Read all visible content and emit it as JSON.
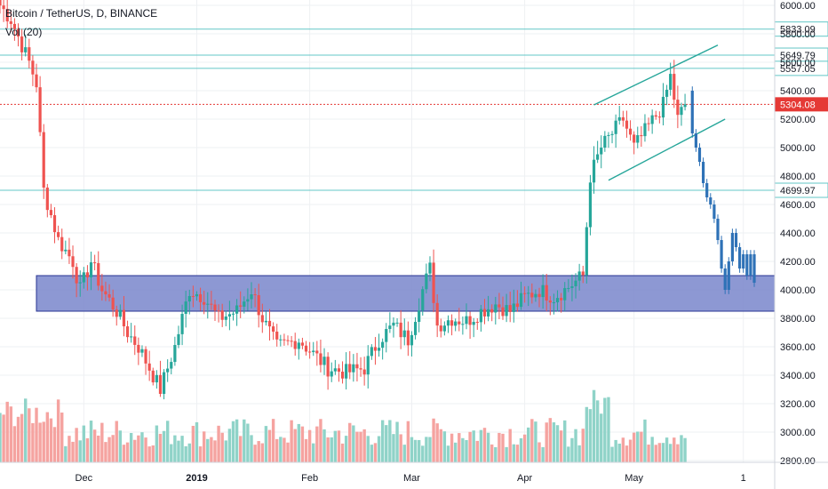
{
  "header": {
    "symbol_line": "Bitcoin / TetherUS, D, BINANCE",
    "indicator_line": "Vol (20)"
  },
  "colors": {
    "up": "#26a69a",
    "down": "#ef5350",
    "level_line": "#63c7c7",
    "current_price": "#e53935",
    "support_zone_fill": "#7986cb",
    "support_zone_stroke": "#283593",
    "wedge_line": "#26a69a",
    "projection": "#2f72b7",
    "volume_up": "#8fd3c8",
    "volume_down": "#f5a3a0"
  },
  "chart_data": {
    "type": "candlestick",
    "title": "Bitcoin / TetherUS, D, BINANCE",
    "indicator": "Vol (20)",
    "y_axis": {
      "side": "right",
      "range": [
        2800,
        6100
      ],
      "ticks": [
        "6000.00",
        "5800.00",
        "5600.00",
        "5400.00",
        "5200.00",
        "5000.00",
        "4800.00",
        "4600.00",
        "4400.00",
        "4200.00",
        "4000.00",
        "3800.00",
        "3600.00",
        "3400.00",
        "3200.00",
        "3000.00",
        "2800.00"
      ]
    },
    "x_axis": {
      "ticks": [
        {
          "label": "Dec",
          "bold": false
        },
        {
          "label": "2019",
          "bold": true
        },
        {
          "label": "Feb",
          "bold": false
        },
        {
          "label": "Mar",
          "bold": false
        },
        {
          "label": "Apr",
          "bold": false
        },
        {
          "label": "May",
          "bold": false
        },
        {
          "label": "1",
          "bold": false
        }
      ]
    },
    "horizontal_levels": [
      {
        "value": 5833.09,
        "label": "5833.09"
      },
      {
        "value": 5649.79,
        "label": "5649.79"
      },
      {
        "value": 5557.05,
        "label": "5557.05"
      },
      {
        "value": 4699.97,
        "label": "4699.97"
      }
    ],
    "current_price": {
      "value": 5304.08,
      "label": "5304.08"
    },
    "support_zone": {
      "from": 3850,
      "to": 4100
    },
    "rising_wedge": {
      "upper": [
        {
          "day": 163,
          "price": 5300
        },
        {
          "day": 197,
          "price": 5720
        }
      ],
      "lower": [
        {
          "day": 167,
          "price": 4770
        },
        {
          "day": 199,
          "price": 5200
        }
      ]
    },
    "projection_path": [
      {
        "day": 189,
        "price": 5400
      },
      {
        "day": 190,
        "price": 5100
      },
      {
        "day": 191,
        "price": 5000
      },
      {
        "day": 192,
        "price": 4900
      },
      {
        "day": 193,
        "price": 4750
      },
      {
        "day": 194,
        "price": 4650
      },
      {
        "day": 195,
        "price": 4600
      },
      {
        "day": 196,
        "price": 4500
      },
      {
        "day": 197,
        "price": 4350
      },
      {
        "day": 198,
        "price": 4150
      },
      {
        "day": 199,
        "price": 4000
      },
      {
        "day": 200,
        "price": 4200
      },
      {
        "day": 201,
        "price": 4400
      },
      {
        "day": 202,
        "price": 4300
      },
      {
        "day": 203,
        "price": 4150
      },
      {
        "day": 204,
        "price": 4250
      },
      {
        "day": 205,
        "price": 4100
      },
      {
        "day": 206,
        "price": 4250
      },
      {
        "day": 207,
        "price": 4050
      }
    ],
    "anchors": [
      {
        "day": 0,
        "price": 6000
      },
      {
        "day": 3,
        "price": 5900
      },
      {
        "day": 8,
        "price": 5600
      },
      {
        "day": 10,
        "price": 5450
      },
      {
        "day": 12,
        "price": 4700
      },
      {
        "day": 16,
        "price": 4350
      },
      {
        "day": 20,
        "price": 4200
      },
      {
        "day": 22,
        "price": 4000
      },
      {
        "day": 25,
        "price": 4200
      },
      {
        "day": 28,
        "price": 4000
      },
      {
        "day": 32,
        "price": 3850
      },
      {
        "day": 35,
        "price": 3700
      },
      {
        "day": 38,
        "price": 3600
      },
      {
        "day": 42,
        "price": 3400
      },
      {
        "day": 44,
        "price": 3300
      },
      {
        "day": 48,
        "price": 3600
      },
      {
        "day": 52,
        "price": 4000
      },
      {
        "day": 56,
        "price": 3950
      },
      {
        "day": 60,
        "price": 3800
      },
      {
        "day": 65,
        "price": 3850
      },
      {
        "day": 69,
        "price": 4000
      },
      {
        "day": 72,
        "price": 3800
      },
      {
        "day": 76,
        "price": 3600
      },
      {
        "day": 82,
        "price": 3650
      },
      {
        "day": 86,
        "price": 3550
      },
      {
        "day": 90,
        "price": 3450
      },
      {
        "day": 95,
        "price": 3420
      },
      {
        "day": 100,
        "price": 3450
      },
      {
        "day": 104,
        "price": 3650
      },
      {
        "day": 108,
        "price": 3750
      },
      {
        "day": 112,
        "price": 3650
      },
      {
        "day": 116,
        "price": 4000
      },
      {
        "day": 118,
        "price": 4150
      },
      {
        "day": 120,
        "price": 3750
      },
      {
        "day": 124,
        "price": 3800
      },
      {
        "day": 128,
        "price": 3780
      },
      {
        "day": 132,
        "price": 3850
      },
      {
        "day": 136,
        "price": 3900
      },
      {
        "day": 140,
        "price": 3850
      },
      {
        "day": 144,
        "price": 3950
      },
      {
        "day": 148,
        "price": 4000
      },
      {
        "day": 152,
        "price": 3950
      },
      {
        "day": 155,
        "price": 4000
      },
      {
        "day": 160,
        "price": 4100
      },
      {
        "day": 162,
        "price": 4800
      },
      {
        "day": 165,
        "price": 5000
      },
      {
        "day": 168,
        "price": 5100
      },
      {
        "day": 171,
        "price": 5200
      },
      {
        "day": 174,
        "price": 5000
      },
      {
        "day": 178,
        "price": 5150
      },
      {
        "day": 182,
        "price": 5300
      },
      {
        "day": 184,
        "price": 5500
      },
      {
        "day": 186,
        "price": 5200
      },
      {
        "day": 188,
        "price": 5304
      }
    ]
  }
}
